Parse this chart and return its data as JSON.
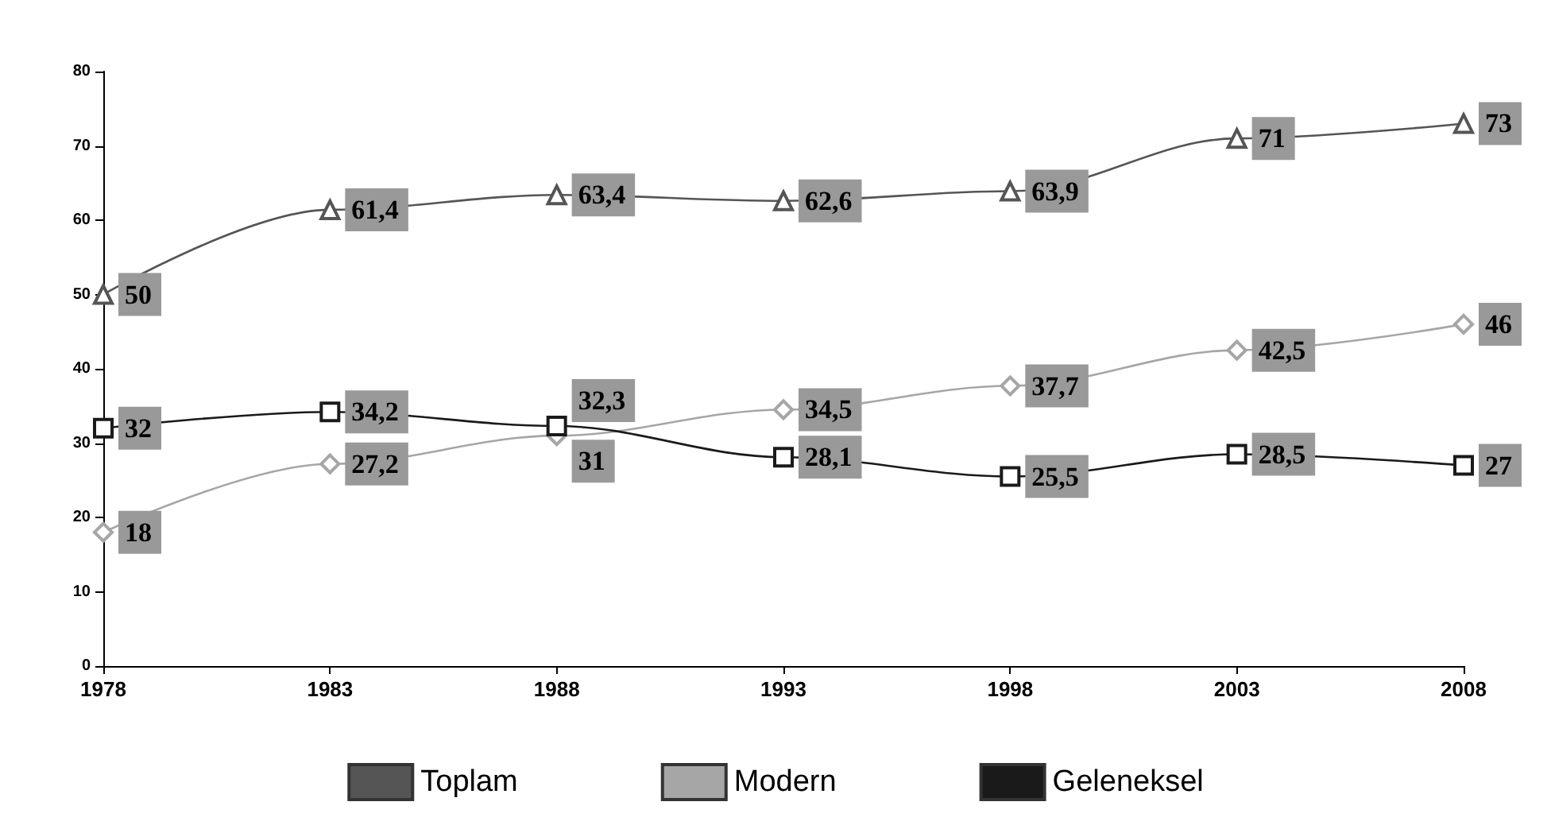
{
  "chart_data": {
    "type": "line",
    "categories": [
      "1978",
      "1983",
      "1988",
      "1993",
      "1998",
      "2003",
      "2008"
    ],
    "ylim": [
      0,
      80
    ],
    "yticks": [
      0,
      10,
      20,
      30,
      40,
      50,
      60,
      70,
      80
    ],
    "grid": false,
    "legend": "bottom",
    "series": [
      {
        "name": "Toplam",
        "color": "#555555",
        "marker": "triangle",
        "values": [
          50,
          61.4,
          63.4,
          62.6,
          63.9,
          71,
          73
        ],
        "value_labels": [
          "50",
          "61,4",
          "63,4",
          "62,6",
          "63,9",
          "71",
          "73"
        ]
      },
      {
        "name": "Modern",
        "color": "#a6a6a6",
        "marker": "diamond",
        "values": [
          18,
          27.2,
          31,
          34.5,
          37.7,
          42.5,
          46
        ],
        "value_labels": [
          "18",
          "27,2",
          "31",
          "34,5",
          "37,7",
          "42,5",
          "46"
        ]
      },
      {
        "name": "Geleneksel",
        "color": "#1a1a1a",
        "marker": "square",
        "values": [
          32,
          34.2,
          32.3,
          28.1,
          25.5,
          28.5,
          27
        ],
        "value_labels": [
          "32",
          "34,2",
          "32,3",
          "28,1",
          "25,5",
          "28,5",
          "27"
        ]
      }
    ]
  }
}
